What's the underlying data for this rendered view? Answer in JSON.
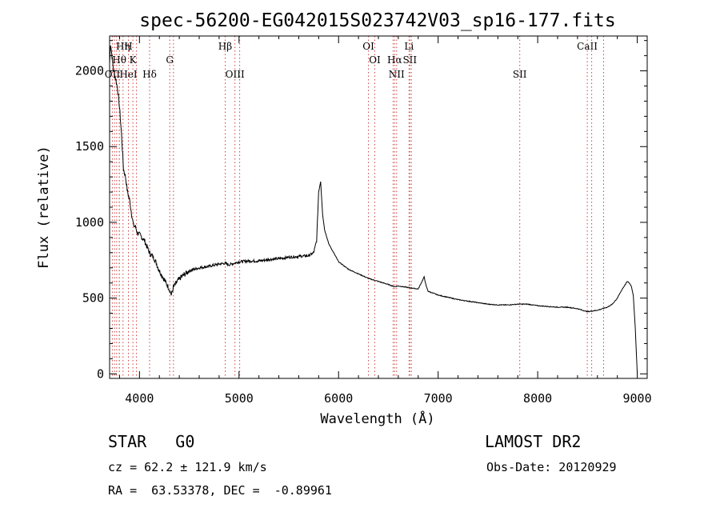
{
  "chart_data": {
    "type": "line",
    "title": "spec-56200-EG042015S023742V03_sp16-177.fits",
    "xlabel": "Wavelength (Å)",
    "ylabel": "Flux (relative)",
    "xlim": [
      3700,
      9100
    ],
    "ylim": [
      -30,
      2230
    ],
    "x_ticks": [
      4000,
      5000,
      6000,
      7000,
      8000,
      9000
    ],
    "y_ticks": [
      0,
      500,
      1000,
      1500,
      2000
    ],
    "grid": false,
    "series": [
      {
        "x": [
          3700,
          3710,
          3720,
          3740,
          3760,
          3780,
          3800,
          3820,
          3840,
          3860,
          3880,
          3900,
          3920,
          3940,
          3960,
          3980,
          4000,
          4050,
          4100,
          4150,
          4200,
          4250,
          4300,
          4320,
          4340,
          4380,
          4420,
          4500,
          4600,
          4700,
          4800,
          4860,
          4900,
          5000,
          5100,
          5200,
          5300,
          5400,
          5500,
          5600,
          5700,
          5750,
          5780,
          5800,
          5820,
          5840,
          5860,
          5900,
          5950,
          6000,
          6100,
          6200,
          6300,
          6400,
          6500,
          6560,
          6600,
          6700,
          6800,
          6860,
          6880,
          6900,
          7000,
          7100,
          7200,
          7300,
          7400,
          7500,
          7600,
          7700,
          7800,
          7900,
          8000,
          8100,
          8200,
          8300,
          8400,
          8500,
          8600,
          8700,
          8750,
          8800,
          8850,
          8900,
          8920,
          8940,
          8960,
          8980,
          9000
        ],
        "y": [
          2050,
          2180,
          2120,
          2000,
          1950,
          1880,
          1760,
          1580,
          1350,
          1300,
          1200,
          1150,
          1060,
          980,
          970,
          930,
          920,
          880,
          800,
          760,
          680,
          620,
          560,
          520,
          570,
          610,
          640,
          680,
          700,
          710,
          725,
          730,
          720,
          740,
          745,
          745,
          755,
          760,
          770,
          775,
          780,
          800,
          880,
          1200,
          1270,
          1050,
          950,
          860,
          800,
          740,
          690,
          660,
          630,
          610,
          590,
          575,
          580,
          570,
          560,
          640,
          580,
          545,
          520,
          505,
          490,
          480,
          470,
          460,
          455,
          455,
          460,
          460,
          450,
          445,
          440,
          440,
          430,
          410,
          420,
          440,
          460,
          500,
          560,
          610,
          600,
          580,
          520,
          300,
          0
        ]
      }
    ],
    "line_markers": [
      {
        "label": "Hη",
        "x": 3835,
        "row": 1
      },
      {
        "label": "H",
        "x": 3889,
        "row": 1
      },
      {
        "label": "Hθ",
        "x": 3797,
        "row": 2
      },
      {
        "label": "K",
        "x": 3934,
        "row": 2
      },
      {
        "label": "OII",
        "x": 3727,
        "row": 3
      },
      {
        "label": "HeI",
        "x": 3889,
        "row": 3
      },
      {
        "label": "Hδ",
        "x": 4102,
        "row": 3
      },
      {
        "label": "G",
        "x": 4304,
        "row": 2
      },
      {
        "label": "Hβ",
        "x": 4861,
        "row": 1
      },
      {
        "label": "OIII",
        "x": 4959,
        "row": 3
      },
      {
        "label": "OI",
        "x": 6300,
        "row": 1
      },
      {
        "label": "OI",
        "x": 6364,
        "row": 2
      },
      {
        "label": "Hα",
        "x": 6563,
        "row": 2
      },
      {
        "label": "Li",
        "x": 6708,
        "row": 1
      },
      {
        "label": "SII",
        "x": 6716,
        "row": 2
      },
      {
        "label": "NII",
        "x": 6583,
        "row": 3
      },
      {
        "label": "SII",
        "x": 7820,
        "row": 3
      },
      {
        "label": "CaII",
        "x": 8498,
        "row": 1
      }
    ],
    "extra_marker_x": [
      3750,
      3771,
      3798,
      3835,
      3970,
      4341,
      4861,
      5007,
      6548,
      6731,
      8542,
      8662
    ]
  },
  "info": {
    "class": "STAR   G0",
    "survey": "LAMOST DR2",
    "cz": "cz = 62.2 ± 121.9 km/s",
    "obs_date": "Obs-Date: 20120929",
    "radec": "RA =  63.53378, DEC =  -0.89961"
  }
}
